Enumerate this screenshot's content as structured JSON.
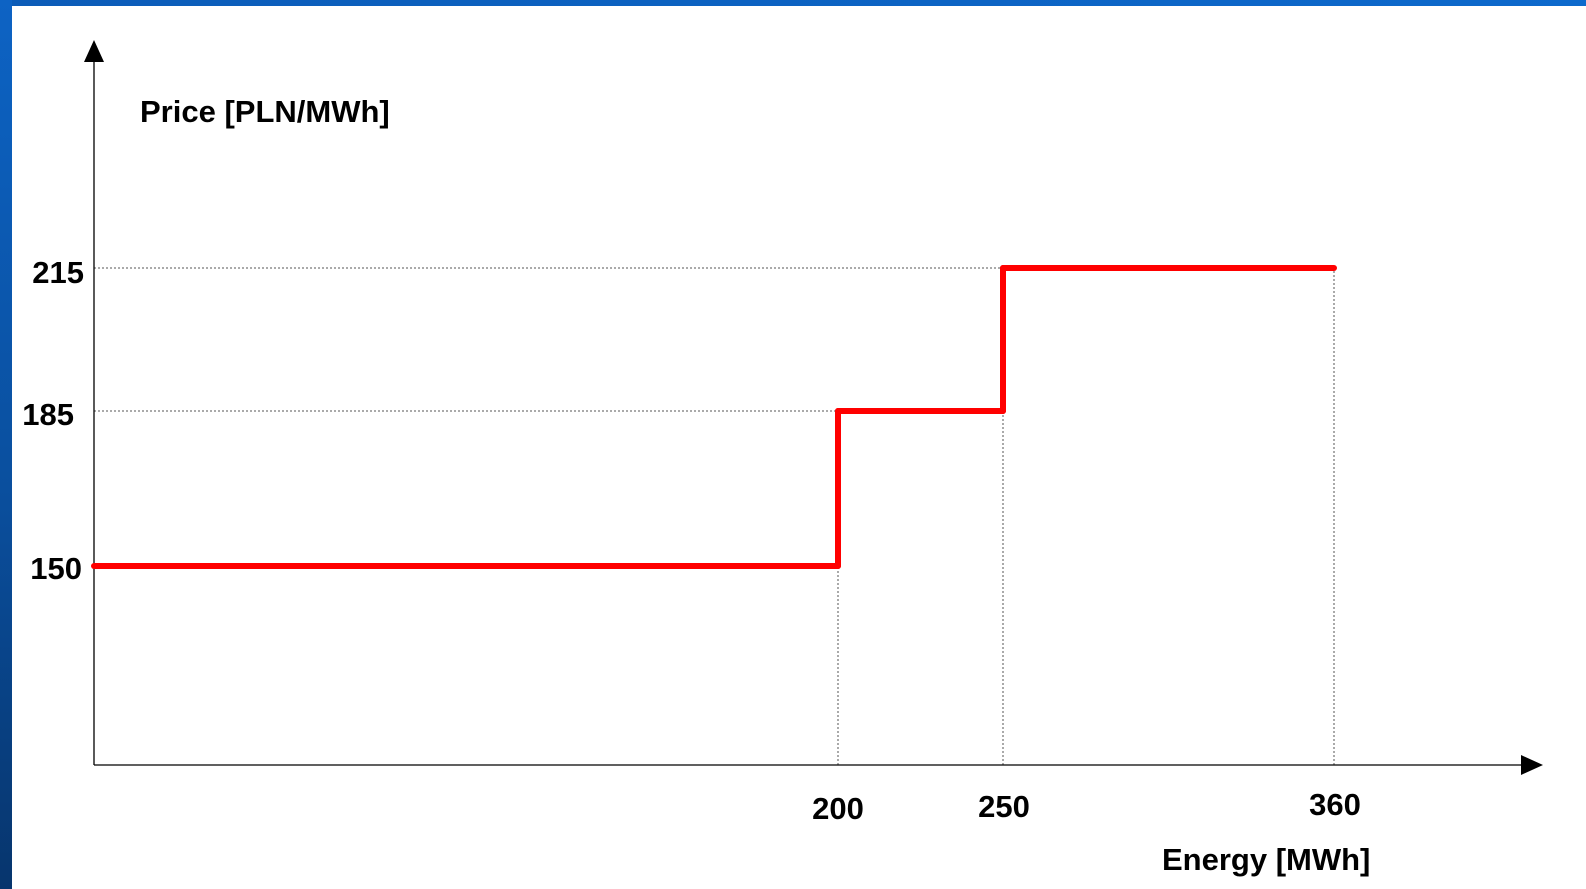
{
  "chart_data": {
    "type": "line",
    "step": true,
    "ylabel": "Price [PLN/MWh]",
    "xlabel": "Energy [MWh]",
    "x_ticks": [
      "200",
      "250",
      "360"
    ],
    "y_ticks": [
      "150",
      "185",
      "215"
    ],
    "series": [
      {
        "points": [
          [
            0,
            150
          ],
          [
            200,
            150
          ],
          [
            200,
            185
          ],
          [
            250,
            185
          ],
          [
            250,
            215
          ],
          [
            360,
            215
          ]
        ],
        "color": "#ff0000"
      }
    ],
    "gridlines": "dotted reference lines at step values",
    "colors": {
      "line": "#ff0000",
      "axes": "#000000",
      "background": "#ffffff",
      "frame": "#0b5fb6"
    }
  }
}
